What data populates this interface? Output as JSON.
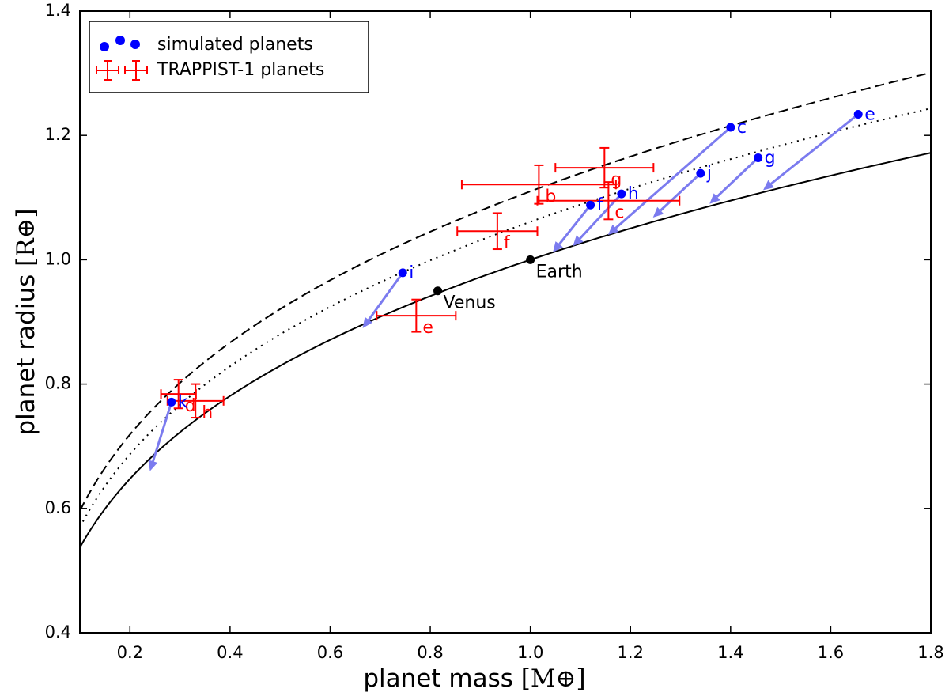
{
  "chart_data": {
    "type": "scatter",
    "xlabel": "planet mass",
    "xunit": "[M⊕]",
    "ylabel": "planet radius",
    "yunit": "[R⊕]",
    "xlim": [
      0.1,
      1.8
    ],
    "ylim": [
      0.4,
      1.4
    ],
    "xticks": [
      0.2,
      0.4,
      0.6,
      0.8,
      1.0,
      1.2,
      1.4,
      1.6,
      1.8
    ],
    "xtick_labels": [
      "0.2",
      "0.4",
      "0.6",
      "0.8",
      "1.0",
      "1.2",
      "1.4",
      "1.6",
      "1.8"
    ],
    "yticks": [
      0.4,
      0.6,
      0.8,
      1.0,
      1.2,
      1.4
    ],
    "ytick_labels": [
      "0.4",
      "0.6",
      "0.8",
      "1.0",
      "1.2",
      "1.4"
    ],
    "legend": {
      "position": "top-left",
      "entries": [
        {
          "label": "simulated planets",
          "color": "#0000ff"
        },
        {
          "label": "TRAPPIST-1 planets",
          "color": "#ff0000"
        }
      ]
    },
    "curves": [
      {
        "name": "solid",
        "style": "solid",
        "color": "#000000",
        "scale": 1.0
      },
      {
        "name": "dotted",
        "style": "dotted",
        "color": "#000000",
        "scale": 1.061
      },
      {
        "name": "dashed",
        "style": "dashed",
        "color": "#000000",
        "scale": 1.11
      }
    ],
    "simulated_planets": [
      {
        "label": "c",
        "mass": 1.4,
        "radius": 1.213,
        "arrow_to": [
          1.155,
          1.04
        ]
      },
      {
        "label": "e",
        "mass": 1.655,
        "radius": 1.234,
        "arrow_to": [
          1.465,
          1.112
        ]
      },
      {
        "label": "g",
        "mass": 1.455,
        "radius": 1.164,
        "arrow_to": [
          1.358,
          1.09
        ]
      },
      {
        "label": "j",
        "mass": 1.34,
        "radius": 1.139,
        "arrow_to": [
          1.245,
          1.068
        ]
      },
      {
        "label": "h",
        "mass": 1.182,
        "radius": 1.106,
        "arrow_to": [
          1.085,
          1.022
        ]
      },
      {
        "label": "f",
        "mass": 1.12,
        "radius": 1.088,
        "arrow_to": [
          1.045,
          1.012
        ]
      },
      {
        "label": "i",
        "mass": 0.745,
        "radius": 0.979,
        "arrow_to": [
          0.665,
          0.89
        ]
      },
      {
        "label": "k",
        "mass": 0.283,
        "radius": 0.771,
        "arrow_to": [
          0.24,
          0.66
        ]
      }
    ],
    "trappist_planets": [
      {
        "label": "b",
        "mass": 1.017,
        "radius": 1.121,
        "xerr": 0.154,
        "yerr": 0.031
      },
      {
        "label": "c",
        "mass": 1.156,
        "radius": 1.095,
        "xerr": 0.142,
        "yerr": 0.03
      },
      {
        "label": "d",
        "mass": 0.297,
        "radius": 0.784,
        "xerr": 0.035,
        "yerr": 0.023
      },
      {
        "label": "e",
        "mass": 0.772,
        "radius": 0.91,
        "xerr": 0.079,
        "yerr": 0.026
      },
      {
        "label": "f",
        "mass": 0.934,
        "radius": 1.046,
        "xerr": 0.08,
        "yerr": 0.029
      },
      {
        "label": "g",
        "mass": 1.148,
        "radius": 1.148,
        "xerr": 0.098,
        "yerr": 0.032
      },
      {
        "label": "h",
        "mass": 0.331,
        "radius": 0.773,
        "xerr": 0.056,
        "yerr": 0.027
      }
    ],
    "reference_planets": [
      {
        "label": "Earth",
        "mass": 1.0,
        "radius": 1.0
      },
      {
        "label": "Venus",
        "mass": 0.815,
        "radius": 0.95
      }
    ],
    "colors": {
      "simulated": "#0000ff",
      "trappist": "#ff0000",
      "reference": "#000000",
      "arrow": "#7b7bef"
    }
  }
}
